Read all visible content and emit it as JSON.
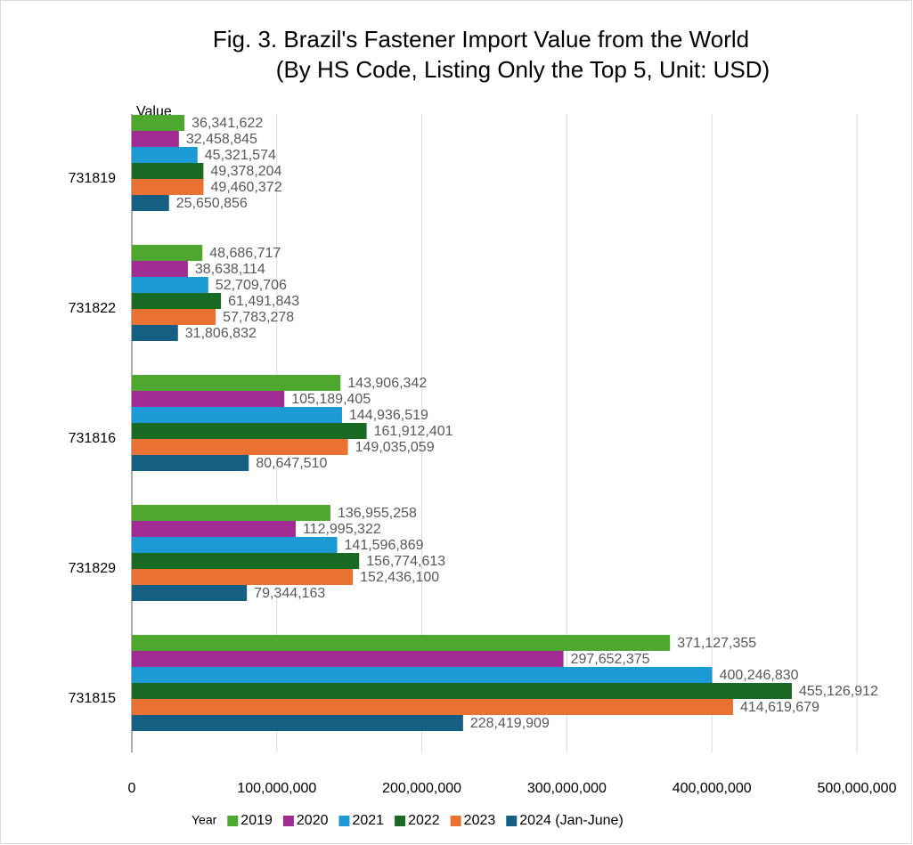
{
  "chart_data": {
    "type": "bar",
    "orientation": "horizontal",
    "title": [
      "Fig. 3. Brazil's Fastener Import  Value from the World",
      "(By HS  Code, Listing Only the Top 5, Unit: USD)"
    ],
    "y_label": "Value",
    "legend_title": "Year",
    "legend": "bottom",
    "grid": true,
    "categories": [
      "731819",
      "731822",
      "731816",
      "731829",
      "731815"
    ],
    "series": [
      {
        "name": "2019",
        "color": "#4ea72e",
        "values": [
          36341622,
          48686717,
          143906342,
          136955258,
          371127355
        ],
        "value_labels": [
          "36,341,622",
          "48,686,717",
          "143,906,342",
          "136,955,258",
          "371,127,355"
        ]
      },
      {
        "name": "2020",
        "color": "#a02b93",
        "values": [
          32458845,
          38638114,
          105189405,
          112995322,
          297652375
        ],
        "value_labels": [
          "32,458,845",
          "38,638,114",
          "105,189,405",
          "112,995,322",
          "297,652,375"
        ]
      },
      {
        "name": "2021",
        "color": "#1b9ad6",
        "values": [
          45321574,
          52709706,
          144936519,
          141596869,
          400246830
        ],
        "value_labels": [
          "45,321,574",
          "52,709,706",
          "144,936,519",
          "141,596,869",
          "400,246,830"
        ]
      },
      {
        "name": "2022",
        "color": "#196b24",
        "values": [
          49378204,
          61491843,
          161912401,
          156774613,
          455126912
        ],
        "value_labels": [
          "49,378,204",
          "61,491,843",
          "161,912,401",
          "156,774,613",
          "455,126,912"
        ]
      },
      {
        "name": "2023",
        "color": "#e97132",
        "values": [
          49460372,
          57783278,
          149035059,
          152436100,
          414619679
        ],
        "value_labels": [
          "49,460,372",
          "57,783,278",
          "149,035,059",
          "152,436,100",
          "414,619,679"
        ]
      },
      {
        "name": "2024 (Jan-June)",
        "color": "#156082",
        "values": [
          25650856,
          31806832,
          80647510,
          79344163,
          228419909
        ],
        "value_labels": [
          "25,650,856",
          "31,806,832",
          "80,647,510",
          "79,344,163",
          "228,419,909"
        ]
      }
    ],
    "xlim": [
      0,
      500000000
    ],
    "xticks": [
      0,
      {
        "value": 100000000,
        "label": "100,000,000"
      },
      {
        "value": 200000000,
        "label": "200,000,000"
      },
      {
        "value": 300000000,
        "label": "300,000,000"
      },
      {
        "value": 400000000,
        "label": "400,000,000"
      },
      {
        "value": 500000000,
        "label": "500,000,000"
      }
    ]
  }
}
